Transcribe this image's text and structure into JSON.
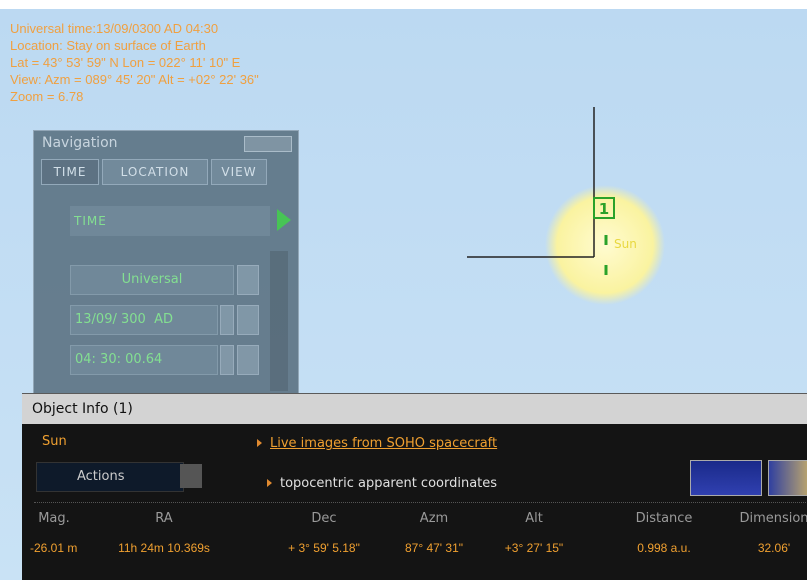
{
  "overlay": {
    "lines": [
      "Universal time:13/09/0300 AD 04:30",
      "Location: Stay on surface of Earth",
      "Lat = 43° 53' 59\" N   Lon = 022° 11' 10\" E",
      "View: Azm = 089° 45' 20\"  Alt = +02° 22' 36\"",
      "Zoom = 6.78"
    ]
  },
  "navigation": {
    "title": "Navigation",
    "tabs": [
      "TIME",
      "LOCATION",
      "VIEW"
    ],
    "section": "TIME",
    "timezone": "Universal",
    "date": "13/09/ 300",
    "era": "AD",
    "time": "04: 30: 00.64"
  },
  "sky": {
    "marker": "1",
    "object_label": "Sun"
  },
  "object_info": {
    "title": "Object Info (1)",
    "name": "Sun",
    "actions": "Actions",
    "links": [
      "Live images from SOHO spacecraft",
      "topocentric apparent coordinates"
    ],
    "table": {
      "headers": [
        "Mag.",
        "RA",
        "Dec",
        "Azm",
        "Alt",
        "Distance",
        "Dimension"
      ],
      "rows": [
        [
          "-26.01 m",
          "11h 24m 10.369s",
          "+ 3° 59' 5.18\"",
          "87° 47' 31\"",
          "+3° 27' 15\"",
          "0.998 a.u.",
          "32.06'"
        ]
      ]
    }
  }
}
